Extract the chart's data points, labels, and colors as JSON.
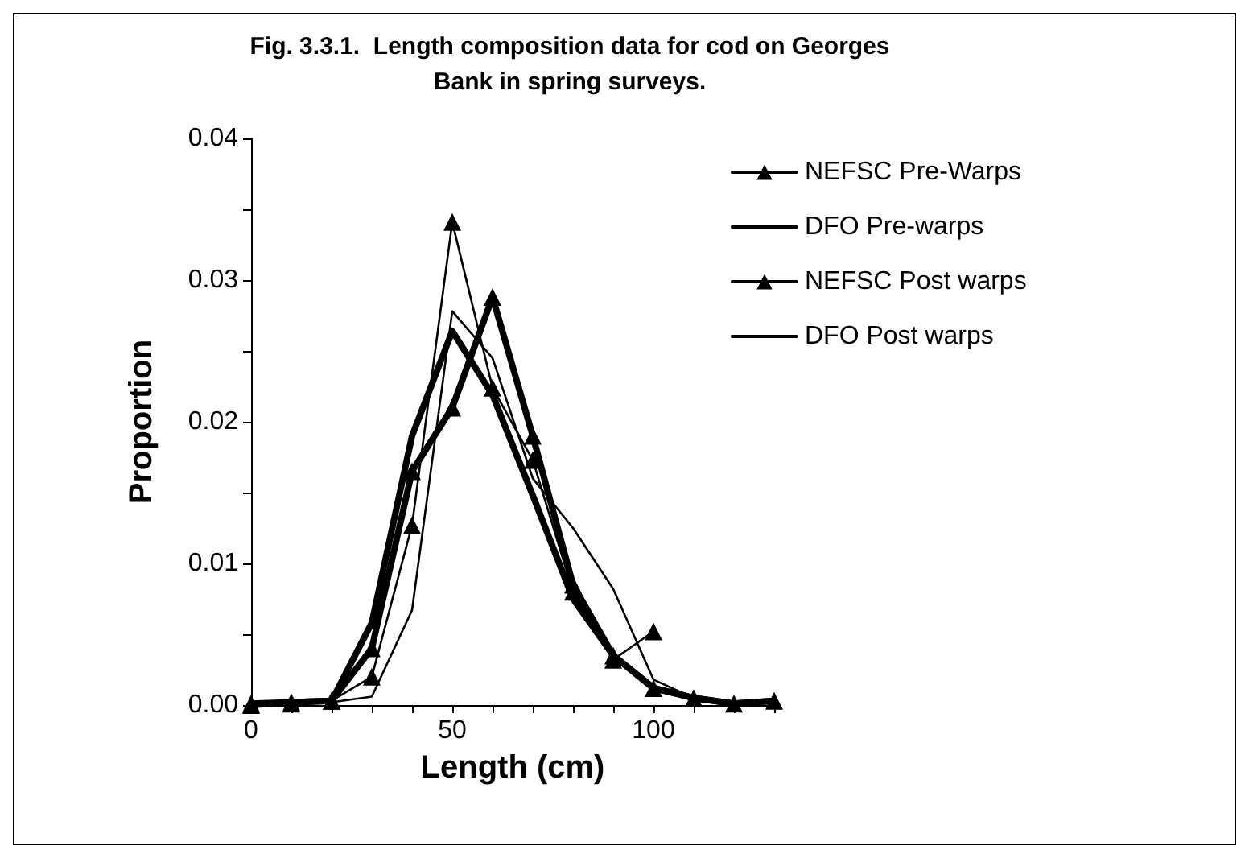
{
  "chart_data": {
    "type": "line",
    "title": "Fig. 3.3.1.  Length composition data for cod on Georges\nBank in spring surveys.",
    "xlabel": "Length (cm)",
    "ylabel": "Proportion",
    "x": [
      0,
      10,
      20,
      30,
      40,
      50,
      60,
      70,
      80,
      90,
      100,
      110,
      120,
      130
    ],
    "series": [
      {
        "name": "NEFSC Pre-Warps",
        "color": "#000000",
        "marker": "triangle",
        "values": [
          0.0001,
          0.0002,
          0.0003,
          0.004,
          0.0165,
          0.021,
          0.0288,
          0.019,
          0.0085,
          0.0035,
          0.0012,
          0.0005,
          0.0001,
          0.0003
        ]
      },
      {
        "name": "DFO Pre-warps",
        "color": "#000000",
        "marker": "none",
        "values": [
          0,
          0.0002,
          0.0003,
          0.0058,
          0.019,
          0.0264,
          0.0219,
          0.0148,
          0.0075,
          0.0035,
          0.0012,
          0.0005,
          0.0001,
          0.0003
        ]
      },
      {
        "name": "NEFSC Post warps",
        "color": "#000000",
        "marker": "triangle",
        "values": [
          0,
          0.0001,
          0.0003,
          0.002,
          0.0127,
          0.0341,
          0.0224,
          0.0173,
          0.008,
          0.0032,
          0.0052,
          null,
          null,
          null
        ]
      },
      {
        "name": "DFO Post warps",
        "color": "#000000",
        "marker": "none",
        "values": [
          0,
          0,
          0.0002,
          0.0006,
          0.0067,
          0.0278,
          0.0245,
          0.016,
          0.0125,
          0.0082,
          0.0018,
          0.0005,
          0.0001,
          0.0002
        ]
      }
    ],
    "xlim": [
      0,
      130
    ],
    "xticks": [
      0,
      {
        "value": 10,
        "label": null
      },
      {
        "value": 20,
        "label": null
      },
      {
        "value": 30,
        "label": null
      },
      {
        "value": 40,
        "label": null
      },
      50,
      {
        "value": 60,
        "label": null
      },
      {
        "value": 70,
        "label": null
      },
      {
        "value": 80,
        "label": null
      },
      {
        "value": 90,
        "label": null
      },
      100,
      {
        "value": 110,
        "label": null
      },
      {
        "value": 120,
        "label": null
      },
      {
        "value": 130,
        "label": null
      }
    ],
    "ylim": [
      0,
      0.04
    ],
    "yticks": [
      {
        "value": 0,
        "label": "0.00"
      },
      {
        "value": 0.005,
        "label": null
      },
      {
        "value": 0.01,
        "label": "0.01"
      },
      {
        "value": 0.015,
        "label": null
      },
      {
        "value": 0.02,
        "label": "0.02"
      },
      {
        "value": 0.025,
        "label": null
      },
      {
        "value": 0.03,
        "label": "0.03"
      },
      {
        "value": 0.035,
        "label": null
      },
      {
        "value": 0.04,
        "label": "0.04"
      }
    ],
    "grid": false,
    "legend": "top right"
  }
}
